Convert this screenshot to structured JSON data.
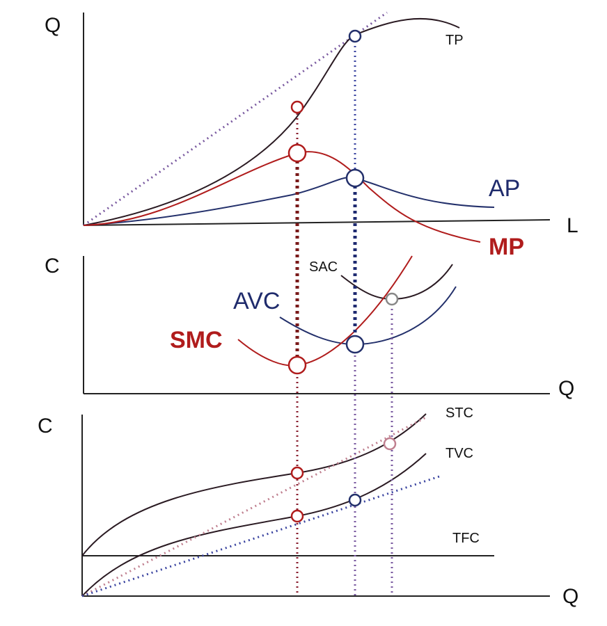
{
  "panels": {
    "production": {
      "y_axis": "Q",
      "x_axis": "L",
      "curves": {
        "tp": "TP",
        "ap": "AP",
        "mp": "MP"
      }
    },
    "unit_cost": {
      "y_axis": "C",
      "x_axis": "Q",
      "curves": {
        "sac": "SAC",
        "avc": "AVC",
        "smc": "SMC"
      }
    },
    "total_cost": {
      "y_axis": "C",
      "x_axis": "Q",
      "curves": {
        "stc": "STC",
        "tvc": "TVC",
        "tfc": "TFC"
      }
    }
  },
  "colors": {
    "red": "#b01c1c",
    "blue": "#23306b",
    "dark": "#2a1a22",
    "violet": "#7a5aa0"
  }
}
